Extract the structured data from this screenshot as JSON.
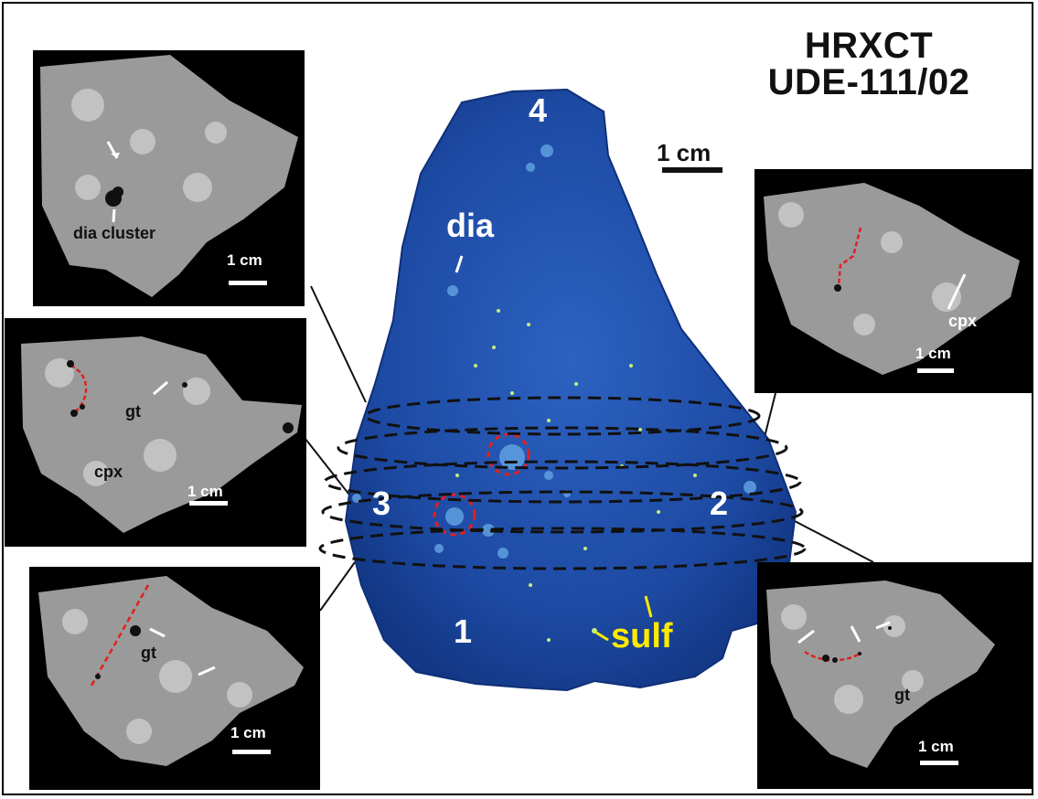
{
  "title": {
    "line1": "HRXCT",
    "line2": "UDE-111/02"
  },
  "main_scale": "1 cm",
  "center_labels": {
    "n1": "1",
    "n2": "2",
    "n3": "3",
    "n4": "4",
    "dia": "dia",
    "sulf": "sulf"
  },
  "panels": {
    "top_left": {
      "label1": "dia cluster",
      "scale": "1 cm"
    },
    "mid_left": {
      "gt": "gt",
      "cpx": "cpx",
      "scale": "1 cm"
    },
    "bottom_left": {
      "gt": "gt",
      "scale": "1 cm"
    },
    "top_right": {
      "cpx": "cpx",
      "scale": "1 cm"
    },
    "bottom_right": {
      "gt": "gt",
      "scale": "1 cm"
    }
  },
  "colors": {
    "sample": "#1f4fa8",
    "sulfide": "#ffea00",
    "slice_line": "#111111",
    "trace": "#e02020"
  }
}
